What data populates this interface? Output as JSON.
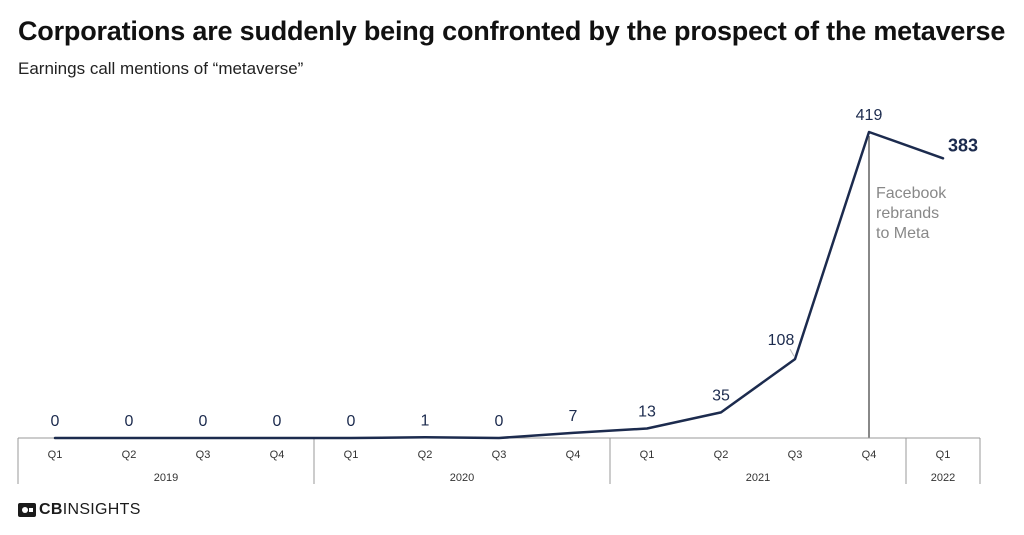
{
  "title": "Corporations are suddenly being confronted by the prospect of the metaverse",
  "subtitle": "Earnings call mentions of “metaverse”",
  "logo": {
    "bold": "CB",
    "regular": "INSIGHTS"
  },
  "colors": {
    "line": "#1c2b4e",
    "label": "#1c2b4e",
    "annotation": "#888888",
    "axis": "#999999",
    "text": "#333333"
  },
  "chart_data": {
    "type": "line",
    "x": [
      "Q1",
      "Q2",
      "Q3",
      "Q4",
      "Q1",
      "Q2",
      "Q3",
      "Q4",
      "Q1",
      "Q2",
      "Q3",
      "Q4",
      "Q1"
    ],
    "year_groups": [
      {
        "label": "2019",
        "count": 4
      },
      {
        "label": "2020",
        "count": 4
      },
      {
        "label": "2021",
        "count": 4
      },
      {
        "label": "2022",
        "count": 1
      }
    ],
    "series": [
      {
        "values": [
          0,
          0,
          0,
          0,
          0,
          1,
          0,
          7,
          13,
          35,
          108,
          419,
          383
        ]
      }
    ],
    "ylim": [
      0,
      419
    ],
    "grid": false,
    "last_label_bold": true,
    "annotation": {
      "at_index": 11,
      "lines": [
        "Facebook",
        "rebrands",
        "to Meta"
      ]
    }
  }
}
